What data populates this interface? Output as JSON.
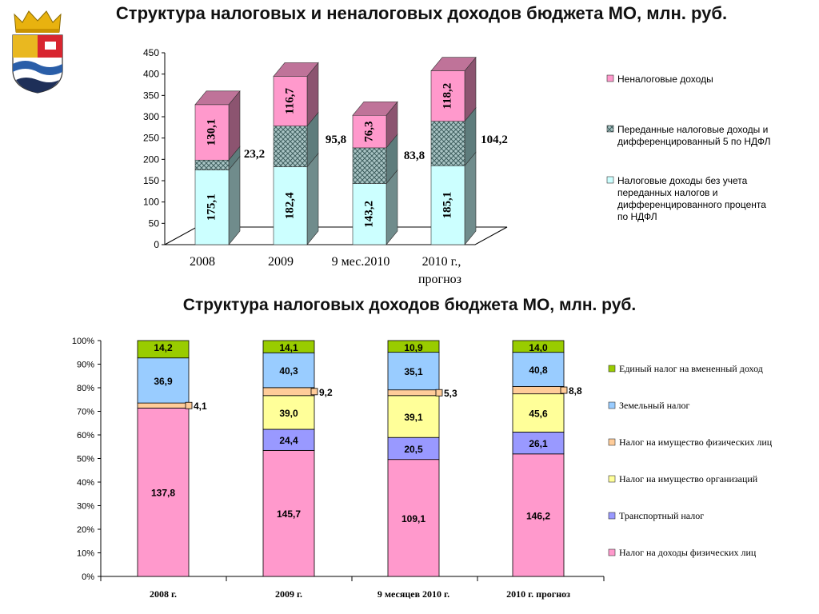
{
  "titles": {
    "top": "Структура налоговых и неналоговых доходов бюджета МО, млн. руб.",
    "bottom": "Структура налоговых доходов бюджета МО, млн. руб."
  },
  "chart_data": [
    {
      "type": "bar",
      "stacked": true,
      "style": "3d",
      "title": "Структура налоговых и неналоговых доходов бюджета МО, млн. руб.",
      "categories": [
        "2008",
        "2009",
        "9 мес.2010",
        "2010 г., прогноз"
      ],
      "ylim": [
        0,
        450
      ],
      "yticks": [
        0,
        50,
        100,
        150,
        200,
        250,
        300,
        350,
        400,
        450
      ],
      "legend_position": "right",
      "series": [
        {
          "name": "Налоговые доходы без учета переданных налогов и дифференцированного процента по НДФЛ",
          "values": [
            175.1,
            182.4,
            143.2,
            185.1
          ],
          "labels": [
            "175,1",
            "182,4",
            "143,2",
            "185,1"
          ],
          "color": "#ccffff"
        },
        {
          "name": "Переданные налоговые доходы и дифференцированный 5 по НДФЛ",
          "values": [
            23.2,
            95.8,
            83.8,
            104.2
          ],
          "labels": [
            "23,2",
            "95,8",
            "83,8",
            "104,2"
          ],
          "color": "#a9c4c4"
        },
        {
          "name": "Неналоговые доходы",
          "values": [
            130.1,
            116.7,
            76.3,
            118.2
          ],
          "labels": [
            "130,1",
            "116,7",
            "76,3",
            "118,2"
          ],
          "color": "#ff99cc"
        }
      ]
    },
    {
      "type": "bar",
      "stacked": true,
      "percent": true,
      "title": "Структура налоговых доходов бюджета МО, млн. руб.",
      "categories": [
        "2008 г.",
        "2009 г.",
        "9 месяцев 2010 г.",
        "2010 г. прогноз"
      ],
      "yticks": [
        "0%",
        "10%",
        "20%",
        "30%",
        "40%",
        "50%",
        "60%",
        "70%",
        "80%",
        "90%",
        "100%"
      ],
      "legend_position": "right",
      "series": [
        {
          "name": "Налог на доходы физических лиц",
          "values": [
            137.8,
            145.7,
            109.1,
            146.2
          ],
          "labels": [
            "137,8",
            "145,7",
            "109,1",
            "146,2"
          ],
          "color": "#ff99cc"
        },
        {
          "name": "Транспортный налог",
          "values": [
            0,
            24.4,
            20.5,
            26.1
          ],
          "labels": [
            "",
            "24,4",
            "20,5",
            "26,1"
          ],
          "color": "#9999ff"
        },
        {
          "name": "Налог на имущество организаций",
          "values": [
            0,
            39.0,
            39.1,
            45.6
          ],
          "labels": [
            "",
            "39,0",
            "39,1",
            "45,6"
          ],
          "color": "#ffff99"
        },
        {
          "name": "Налог на имущество физических лиц",
          "values": [
            4.1,
            9.2,
            5.3,
            8.8
          ],
          "labels": [
            "4,1",
            "9,2",
            "5,3",
            "8,8"
          ],
          "color": "#ffcc99"
        },
        {
          "name": "Земельный налог",
          "values": [
            36.9,
            40.3,
            35.1,
            40.8
          ],
          "labels": [
            "36,9",
            "40,3",
            "35,1",
            "40,8"
          ],
          "color": "#99ccff"
        },
        {
          "name": "Единый налог на вмененный доход",
          "values": [
            14.2,
            14.1,
            10.9,
            14.0
          ],
          "labels": [
            "14,2",
            "14,1",
            "10,9",
            "14,0"
          ],
          "color": "#99cc00"
        }
      ]
    }
  ]
}
